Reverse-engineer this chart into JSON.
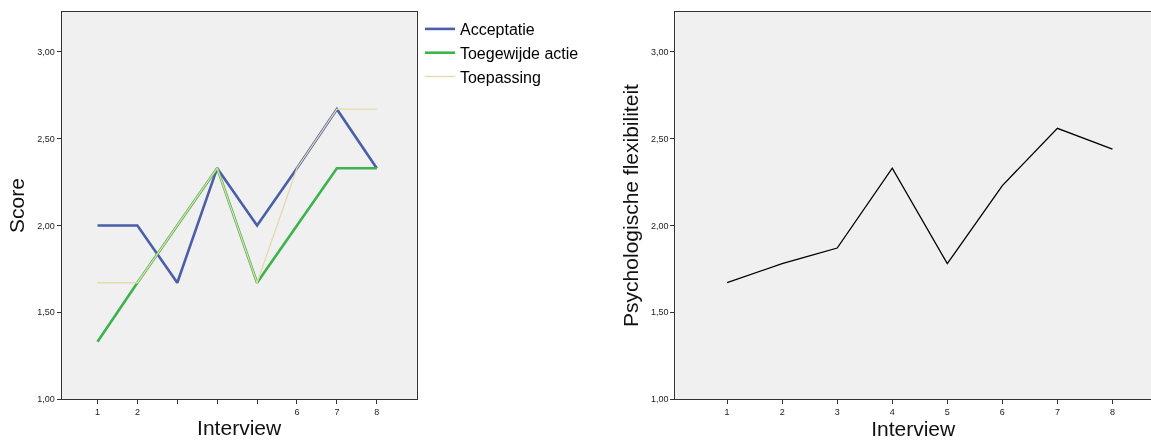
{
  "chart_data": [
    {
      "type": "line",
      "xlabel": "Interview",
      "ylabel": "Score",
      "x": [
        1,
        2,
        3,
        4,
        5,
        6,
        7,
        8
      ],
      "series": [
        {
          "name": "Acceptatie",
          "color": "#4a5fa8",
          "values": [
            2.0,
            2.0,
            1.67,
            2.33,
            2.0,
            2.33,
            2.67,
            2.33
          ]
        },
        {
          "name": "Toegewijde actie",
          "color": "#3cb44b",
          "values": [
            1.33,
            1.67,
            2.0,
            2.33,
            1.67,
            2.0,
            2.33,
            2.33
          ]
        },
        {
          "name": "Toepassing",
          "color": "#e3d9ad",
          "values": [
            1.67,
            1.67,
            2.0,
            2.33,
            1.67,
            2.33,
            2.67,
            2.67
          ]
        }
      ],
      "xlim": [
        0.1,
        9
      ],
      "ylim": [
        1,
        3.23
      ],
      "xticks": [
        1,
        2,
        {
          "value": 3,
          "label": null
        },
        {
          "value": 4,
          "label": null
        },
        {
          "value": 5,
          "label": null
        },
        6,
        7,
        8
      ],
      "yticks": [
        {
          "value": 1,
          "label": "1,00"
        },
        {
          "value": 1.5,
          "label": "1,50"
        },
        {
          "value": 2,
          "label": "2,00"
        },
        {
          "value": 2.5,
          "label": "2,50"
        },
        {
          "value": 3,
          "label": "3,00"
        }
      ],
      "grid": false,
      "legend": "top right"
    },
    {
      "type": "line",
      "xlabel": "Interview",
      "ylabel": "Psychologische flexibiliteit",
      "x": [
        1,
        2,
        3,
        4,
        5,
        6,
        7,
        8
      ],
      "series": [
        {
          "color": "#000000",
          "values": [
            1.67,
            1.78,
            1.87,
            2.33,
            1.78,
            2.23,
            2.56,
            2.44
          ]
        }
      ],
      "xlim": [
        0.06,
        8.7
      ],
      "ylim": [
        1,
        3.23
      ],
      "xticks": [
        1,
        2,
        3,
        4,
        5,
        6,
        7,
        8
      ],
      "yticks": [
        {
          "value": 1,
          "label": "1,00"
        },
        {
          "value": 1.5,
          "label": "1,50"
        },
        {
          "value": 2,
          "label": "2,00"
        },
        {
          "value": 2.5,
          "label": "2,50"
        },
        {
          "value": 3,
          "label": "3,00"
        }
      ],
      "grid": false
    }
  ]
}
